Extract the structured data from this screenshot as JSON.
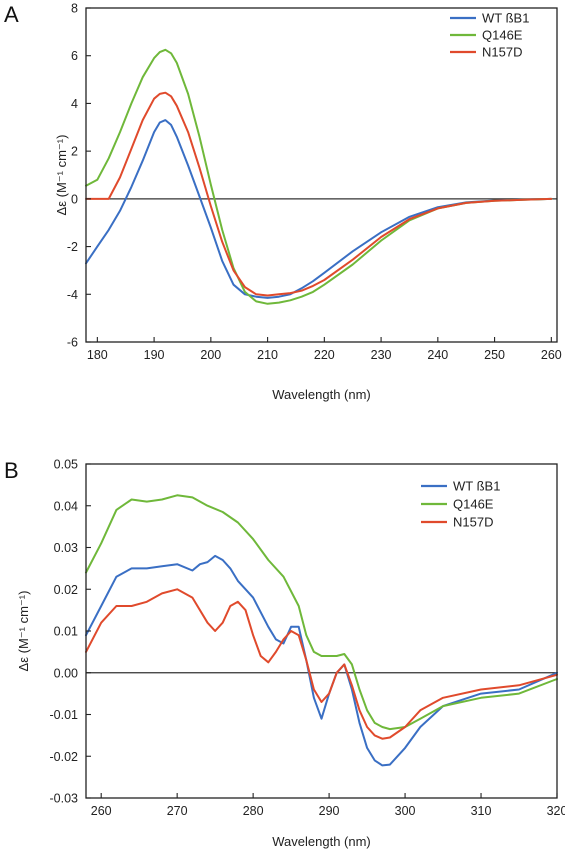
{
  "chart_data": [
    {
      "panel": "A",
      "type": "line",
      "xlabel": "Wavelength (nm)",
      "ylabel": "Δε (M⁻¹ cm⁻¹)",
      "xlim": [
        178,
        261
      ],
      "ylim": [
        -6,
        8
      ],
      "xticks": [
        180,
        190,
        200,
        210,
        220,
        230,
        240,
        250,
        260
      ],
      "yticks": [
        -6,
        -4,
        -2,
        0,
        2,
        4,
        6,
        8
      ],
      "grid": false,
      "legend_position": "top-right",
      "zero_line": true,
      "series": [
        {
          "name": "WT ßB1",
          "color": "#3a6fc4",
          "x": [
            178,
            180,
            182,
            184,
            186,
            188,
            190,
            191,
            192,
            193,
            194,
            196,
            198,
            200,
            202,
            204,
            206,
            208,
            210,
            212,
            214,
            216,
            218,
            220,
            225,
            230,
            235,
            240,
            245,
            250,
            255,
            260
          ],
          "y": [
            -2.7,
            -2.0,
            -1.3,
            -0.5,
            0.5,
            1.6,
            2.8,
            3.2,
            3.3,
            3.1,
            2.6,
            1.4,
            0.1,
            -1.2,
            -2.6,
            -3.6,
            -4.0,
            -4.1,
            -4.15,
            -4.1,
            -4.0,
            -3.75,
            -3.45,
            -3.1,
            -2.2,
            -1.4,
            -0.75,
            -0.35,
            -0.15,
            -0.07,
            -0.03,
            0.0
          ]
        },
        {
          "name": "Q146E",
          "color": "#6fb83a",
          "x": [
            178,
            180,
            182,
            184,
            186,
            188,
            190,
            191,
            192,
            193,
            194,
            196,
            198,
            200,
            202,
            204,
            206,
            208,
            210,
            212,
            214,
            216,
            218,
            220,
            225,
            230,
            235,
            240,
            245,
            250,
            255,
            260
          ],
          "y": [
            0.55,
            0.8,
            1.7,
            2.8,
            4.0,
            5.1,
            5.9,
            6.15,
            6.25,
            6.1,
            5.7,
            4.4,
            2.6,
            0.6,
            -1.3,
            -2.9,
            -3.9,
            -4.3,
            -4.4,
            -4.35,
            -4.25,
            -4.1,
            -3.9,
            -3.6,
            -2.75,
            -1.75,
            -0.9,
            -0.4,
            -0.17,
            -0.08,
            -0.04,
            0.0
          ]
        },
        {
          "name": "N157D",
          "color": "#e04a2c",
          "x": [
            178,
            180,
            182,
            184,
            186,
            188,
            190,
            191,
            192,
            193,
            194,
            196,
            198,
            200,
            202,
            204,
            206,
            208,
            210,
            212,
            214,
            216,
            218,
            220,
            225,
            230,
            235,
            240,
            245,
            250,
            255,
            260
          ],
          "y": [
            0.0,
            0.0,
            0.0,
            0.9,
            2.1,
            3.3,
            4.2,
            4.4,
            4.45,
            4.3,
            3.9,
            2.8,
            1.3,
            -0.3,
            -1.8,
            -3.0,
            -3.7,
            -4.0,
            -4.05,
            -4.0,
            -3.95,
            -3.85,
            -3.65,
            -3.4,
            -2.55,
            -1.6,
            -0.85,
            -0.4,
            -0.17,
            -0.08,
            -0.04,
            0.0
          ]
        }
      ]
    },
    {
      "panel": "B",
      "type": "line",
      "xlabel": "Wavelength (nm)",
      "ylabel": "Δε (M⁻¹ cm⁻¹)",
      "xlim": [
        258,
        320
      ],
      "ylim": [
        -0.03,
        0.05
      ],
      "xticks": [
        260,
        270,
        280,
        290,
        300,
        310,
        320
      ],
      "yticks": [
        -0.03,
        -0.02,
        -0.01,
        0.0,
        0.01,
        0.02,
        0.03,
        0.04,
        0.05
      ],
      "ytick_labels": [
        "-0.03",
        "-0.02",
        "-0.01",
        "0.00",
        "0.01",
        "0.02",
        "0.03",
        "0.04",
        "0.05"
      ],
      "grid": false,
      "legend_position": "top-right",
      "zero_line": true,
      "series": [
        {
          "name": "WT ßB1",
          "color": "#3a6fc4",
          "x": [
            258,
            260,
            262,
            264,
            266,
            268,
            270,
            272,
            273,
            274,
            275,
            276,
            277,
            278,
            280,
            282,
            283,
            284,
            285,
            286,
            287,
            288,
            289,
            290,
            291,
            292,
            293,
            294,
            295,
            296,
            297,
            298,
            300,
            302,
            305,
            310,
            315,
            320
          ],
          "y": [
            0.009,
            0.016,
            0.023,
            0.025,
            0.025,
            0.0255,
            0.026,
            0.0245,
            0.026,
            0.0265,
            0.028,
            0.027,
            0.025,
            0.022,
            0.018,
            0.011,
            0.008,
            0.007,
            0.011,
            0.011,
            0.003,
            -0.006,
            -0.011,
            -0.005,
            0.0,
            0.002,
            -0.004,
            -0.012,
            -0.018,
            -0.021,
            -0.0222,
            -0.022,
            -0.018,
            -0.013,
            -0.008,
            -0.005,
            -0.004,
            0.0
          ]
        },
        {
          "name": "Q146E",
          "color": "#6fb83a",
          "x": [
            258,
            260,
            262,
            264,
            266,
            268,
            270,
            272,
            274,
            276,
            278,
            280,
            282,
            284,
            286,
            287,
            288,
            289,
            290,
            291,
            292,
            293,
            294,
            295,
            296,
            297,
            298,
            300,
            302,
            305,
            310,
            315,
            320
          ],
          "y": [
            0.024,
            0.031,
            0.039,
            0.0415,
            0.041,
            0.0415,
            0.0425,
            0.042,
            0.04,
            0.0385,
            0.036,
            0.032,
            0.027,
            0.023,
            0.016,
            0.009,
            0.005,
            0.004,
            0.004,
            0.004,
            0.0045,
            0.002,
            -0.004,
            -0.009,
            -0.012,
            -0.013,
            -0.0135,
            -0.013,
            -0.011,
            -0.008,
            -0.006,
            -0.005,
            -0.0015
          ]
        },
        {
          "name": "N157D",
          "color": "#e04a2c",
          "x": [
            258,
            260,
            262,
            264,
            266,
            268,
            270,
            272,
            274,
            275,
            276,
            277,
            278,
            279,
            280,
            281,
            282,
            283,
            284,
            285,
            286,
            287,
            288,
            289,
            290,
            291,
            292,
            293,
            294,
            295,
            296,
            297,
            298,
            300,
            302,
            305,
            310,
            315,
            320
          ],
          "y": [
            0.005,
            0.012,
            0.016,
            0.016,
            0.017,
            0.019,
            0.02,
            0.018,
            0.012,
            0.01,
            0.012,
            0.016,
            0.017,
            0.015,
            0.009,
            0.004,
            0.0025,
            0.005,
            0.008,
            0.01,
            0.009,
            0.003,
            -0.004,
            -0.007,
            -0.005,
            0.0,
            0.002,
            -0.003,
            -0.009,
            -0.013,
            -0.015,
            -0.0158,
            -0.0155,
            -0.013,
            -0.009,
            -0.006,
            -0.004,
            -0.003,
            -0.0005
          ]
        }
      ]
    }
  ]
}
